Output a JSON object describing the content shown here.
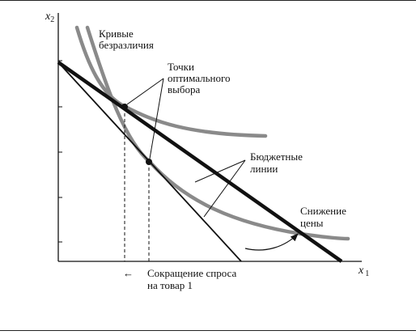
{
  "axes": {
    "y_label": "x",
    "y_sub": "2",
    "x_label": "x",
    "x_sub": "1"
  },
  "labels": {
    "indiff_line1": "Кривые",
    "indiff_line2": "безразличия",
    "opt_line1": "Точки",
    "opt_line2": "оптимального",
    "opt_line3": "выбора",
    "budget_line1": "Бюджетные",
    "budget_line2": "линии",
    "price_line1": "Снижение",
    "price_line2": "цены",
    "demand_arrow": "←",
    "demand_line1": "Сокращение спроса",
    "demand_line2": "на товар 1"
  },
  "colors": {
    "ink": "#111111",
    "curve": "#8a8a8a"
  }
}
